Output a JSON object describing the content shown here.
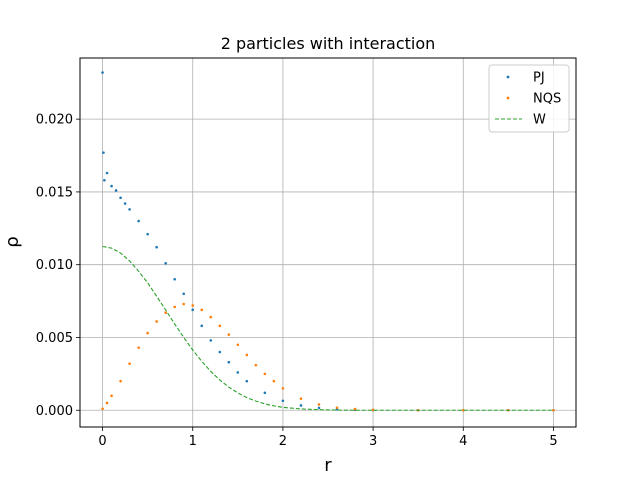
{
  "chart_data": {
    "type": "scatter",
    "title": "2 particles with interaction",
    "xlabel": "r",
    "ylabel": "ρ",
    "xlim": [
      -0.25,
      5.25
    ],
    "ylim": [
      -0.00115,
      0.0242
    ],
    "xticks": [
      0,
      1,
      2,
      3,
      4,
      5
    ],
    "yticks": [
      0.0,
      0.005,
      0.01,
      0.015,
      0.02
    ],
    "xtick_labels": [
      "0",
      "1",
      "2",
      "3",
      "4",
      "5"
    ],
    "ytick_labels": [
      "0.000",
      "0.005",
      "0.010",
      "0.015",
      "0.020"
    ],
    "grid": true,
    "legend": {
      "position": "top-right"
    },
    "series": [
      {
        "name": "PJ",
        "style": "dots",
        "color": "#1f77b4",
        "x": [
          0.0,
          0.01,
          0.02,
          0.05,
          0.1,
          0.15,
          0.2,
          0.25,
          0.3,
          0.4,
          0.5,
          0.6,
          0.7,
          0.8,
          0.9,
          1.0,
          1.1,
          1.2,
          1.3,
          1.4,
          1.5,
          1.6,
          1.8,
          2.0,
          2.2,
          2.4,
          2.6,
          2.8,
          3.0,
          3.5,
          4.0,
          4.5,
          5.0
        ],
        "y": [
          0.0232,
          0.0177,
          0.0158,
          0.0163,
          0.0154,
          0.0151,
          0.0146,
          0.0142,
          0.0138,
          0.013,
          0.0121,
          0.0112,
          0.0101,
          0.009,
          0.008,
          0.0069,
          0.0058,
          0.0048,
          0.004,
          0.0033,
          0.0026,
          0.002,
          0.0012,
          0.00065,
          0.00033,
          0.00016,
          7e-05,
          3e-05,
          1e-05,
          0.0,
          0.0,
          0.0,
          0.0
        ]
      },
      {
        "name": "NQS",
        "style": "dots",
        "color": "#ff7f0e",
        "x": [
          0.0,
          0.05,
          0.1,
          0.2,
          0.3,
          0.4,
          0.5,
          0.6,
          0.7,
          0.8,
          0.9,
          1.0,
          1.1,
          1.2,
          1.3,
          1.4,
          1.5,
          1.6,
          1.7,
          1.8,
          1.9,
          2.0,
          2.2,
          2.4,
          2.6,
          2.8,
          3.0,
          3.5,
          4.0,
          4.5,
          5.0
        ],
        "y": [
          0.0001,
          0.0005,
          0.001,
          0.002,
          0.0032,
          0.0043,
          0.0053,
          0.0061,
          0.0067,
          0.0071,
          0.0073,
          0.0072,
          0.0069,
          0.0064,
          0.0058,
          0.0052,
          0.0045,
          0.0038,
          0.0031,
          0.0025,
          0.002,
          0.0015,
          0.0008,
          0.0004,
          0.00018,
          8e-05,
          3e-05,
          0.0,
          0.0,
          0.0,
          0.0
        ]
      },
      {
        "name": "W",
        "style": "dashed",
        "color": "#2ca02c",
        "x": [
          0.0,
          0.1,
          0.2,
          0.3,
          0.4,
          0.5,
          0.6,
          0.7,
          0.8,
          0.9,
          1.0,
          1.1,
          1.2,
          1.3,
          1.4,
          1.5,
          1.6,
          1.7,
          1.8,
          1.9,
          2.0,
          2.2,
          2.4,
          2.6,
          2.8,
          3.0,
          3.5,
          4.0,
          4.5,
          5.0
        ],
        "y": [
          0.01125,
          0.01114,
          0.0108,
          0.01026,
          0.00955,
          0.00876,
          0.00783,
          0.00689,
          0.00593,
          0.00501,
          0.00414,
          0.00336,
          0.00267,
          0.00208,
          0.00159,
          0.00119,
          0.00087,
          0.00063,
          0.00044,
          0.0003,
          0.0002,
          9e-05,
          4e-05,
          1e-05,
          0.0,
          0.0,
          0.0,
          0.0,
          0.0,
          0.0
        ]
      }
    ]
  }
}
